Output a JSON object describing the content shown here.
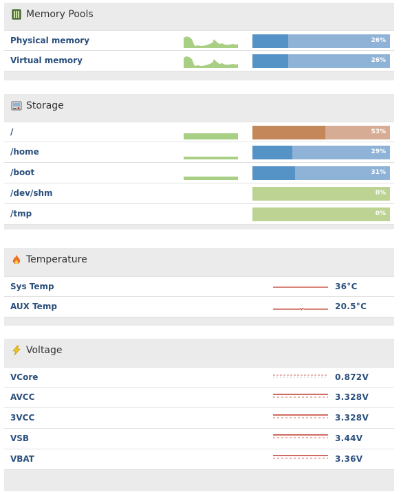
{
  "memory": {
    "title": "Memory Pools",
    "icon": "memory-chip-icon",
    "rows": [
      {
        "label": "Physical memory",
        "percent": 26,
        "percent_label": "26%"
      },
      {
        "label": "Virtual memory",
        "percent": 26,
        "percent_label": "26%"
      }
    ]
  },
  "storage": {
    "title": "Storage",
    "icon": "hard-drive-icon",
    "rows": [
      {
        "label": "/",
        "percent": 53,
        "percent_label": "53%"
      },
      {
        "label": "/home",
        "percent": 29,
        "percent_label": "29%"
      },
      {
        "label": "/boot",
        "percent": 31,
        "percent_label": "31%"
      },
      {
        "label": "/dev/shm",
        "percent": 0,
        "percent_label": "0%"
      },
      {
        "label": "/tmp",
        "percent": 0,
        "percent_label": "0%"
      }
    ]
  },
  "temperature": {
    "title": "Temperature",
    "icon": "flame-icon",
    "rows": [
      {
        "label": "Sys Temp",
        "value": "36°C"
      },
      {
        "label": "AUX Temp",
        "value": "20.5°C"
      }
    ]
  },
  "voltage": {
    "title": "Voltage",
    "icon": "lightning-icon",
    "rows": [
      {
        "label": "VCore",
        "value": "0.872V"
      },
      {
        "label": "AVCC",
        "value": "3.328V"
      },
      {
        "label": "3VCC",
        "value": "3.328V"
      },
      {
        "label": "VSB",
        "value": "3.44V"
      },
      {
        "label": "VBAT",
        "value": "3.36V"
      }
    ]
  },
  "colors": {
    "label": "#2b4f7c",
    "bar_fill": "#5592c6",
    "bar_track": "#8fb3d7",
    "bar_warn_fill": "#c48759",
    "bar_warn_track": "#d6ac94",
    "bar_empty": "#bcd394",
    "sparkline": "#a8cf84",
    "temp_line": "#c0392b"
  }
}
